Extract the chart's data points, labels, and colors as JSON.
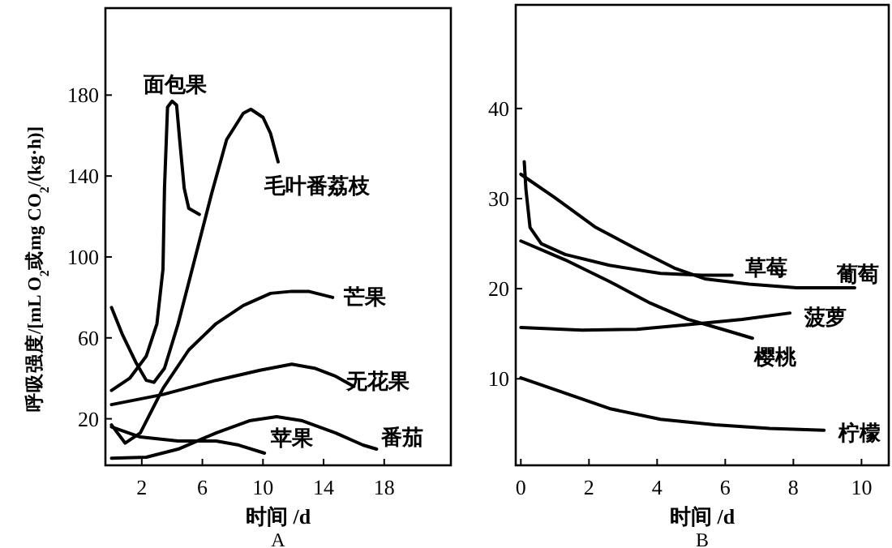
{
  "chart_data": [
    {
      "type": "line",
      "title": "A",
      "xlabel": "时间 /d",
      "ylabel": "呼吸强度/[mL O$_{2}$或mg CO$_{2}$/(kg·h)]",
      "xlim": [
        -0.4,
        22.4
      ],
      "ylim": [
        -3,
        223
      ],
      "xticks": [
        2,
        6,
        10,
        14,
        18
      ],
      "yticks": [
        20,
        60,
        100,
        140,
        180
      ],
      "grid": false,
      "marker": "none",
      "line_style": "solid",
      "series": [
        {
          "name": "面包果",
          "color": "#000000",
          "x": [
            0,
            1.2,
            2.3,
            3.0,
            3.4,
            3.5,
            3.7,
            4.0,
            4.3,
            4.5,
            4.8,
            5.1,
            5.8
          ],
          "values": [
            34,
            40,
            51,
            67,
            94,
            134,
            174,
            177,
            175,
            158,
            134,
            124,
            121
          ]
        },
        {
          "name": "毛叶番荔枝",
          "color": "#000000",
          "x": [
            0,
            0.7,
            1.6,
            2.3,
            2.8,
            3.5,
            4.4,
            5.5,
            6.6,
            7.6,
            8.7,
            9.2,
            10,
            10.5,
            11
          ],
          "values": [
            75,
            62,
            48,
            39,
            38,
            45,
            67,
            99,
            131,
            158,
            171,
            173,
            169,
            161,
            147
          ]
        },
        {
          "name": "芒果",
          "color": "#000000",
          "x": [
            0,
            0.9,
            1.9,
            3.4,
            5.1,
            6.9,
            8.7,
            10.5,
            11.9,
            13,
            14.6
          ],
          "values": [
            17,
            8,
            13,
            35,
            54,
            67,
            76,
            82,
            83,
            83,
            80
          ]
        },
        {
          "name": "无花果",
          "color": "#000000",
          "x": [
            0,
            3.4,
            6.9,
            9.8,
            11.9,
            13.4,
            14.8,
            16
          ],
          "values": [
            27,
            32,
            39,
            44,
            47,
            45,
            41,
            36
          ]
        },
        {
          "name": "苹果",
          "color": "#000000",
          "x": [
            0,
            1.9,
            4.4,
            6.9,
            8.4,
            10.1
          ],
          "values": [
            16,
            11,
            9,
            9,
            7,
            3
          ]
        },
        {
          "name": "番茄",
          "color": "#000000",
          "x": [
            0,
            2.3,
            4.4,
            6.9,
            9.1,
            10.9,
            12.6,
            14.8,
            16.6,
            17.5
          ],
          "values": [
            0.5,
            1,
            5,
            13,
            19,
            21,
            19,
            13,
            7,
            5
          ]
        }
      ]
    },
    {
      "type": "line",
      "title": "B",
      "xlabel": "时间 /d",
      "xlim": [
        -0.15,
        10.8
      ],
      "ylim": [
        0.4,
        51.5
      ],
      "xticks": [
        0,
        2,
        4,
        6,
        8,
        10
      ],
      "yticks": [
        10,
        20,
        30,
        40
      ],
      "grid": false,
      "marker": "none",
      "line_style": "solid",
      "series": [
        {
          "name": "葡萄",
          "color": "#000000",
          "x": [
            0,
            1,
            2.2,
            3.4,
            4.5,
            5.4,
            6.7,
            8.1,
            9.8
          ],
          "values": [
            32.7,
            30.1,
            26.8,
            24.4,
            22.3,
            21.1,
            20.5,
            20.1,
            20.1
          ]
        },
        {
          "name": "草莓",
          "color": "#000000",
          "x": [
            0.1,
            0.15,
            0.27,
            0.6,
            1.3,
            2.6,
            4.1,
            5.3,
            6.2
          ],
          "values": [
            34.1,
            31,
            26.8,
            25,
            23.8,
            22.6,
            21.7,
            21.5,
            21.5
          ]
        },
        {
          "name": "樱桃",
          "color": "#000000",
          "x": [
            0,
            1.3,
            2.6,
            3.8,
            4.9,
            6,
            6.8
          ],
          "values": [
            25.3,
            23.2,
            20.8,
            18.4,
            16.6,
            15.4,
            14.5
          ]
        },
        {
          "name": "菠萝",
          "color": "#000000",
          "x": [
            0,
            1.8,
            3.4,
            4.9,
            6.5,
            7.9
          ],
          "values": [
            15.7,
            15.4,
            15.5,
            16,
            16.6,
            17.3
          ]
        },
        {
          "name": "柠檬",
          "color": "#000000",
          "x": [
            0,
            1,
            2.6,
            4.1,
            5.7,
            7.3,
            8.9
          ],
          "values": [
            10.1,
            8.8,
            6.7,
            5.5,
            4.9,
            4.5,
            4.3
          ]
        }
      ]
    }
  ]
}
